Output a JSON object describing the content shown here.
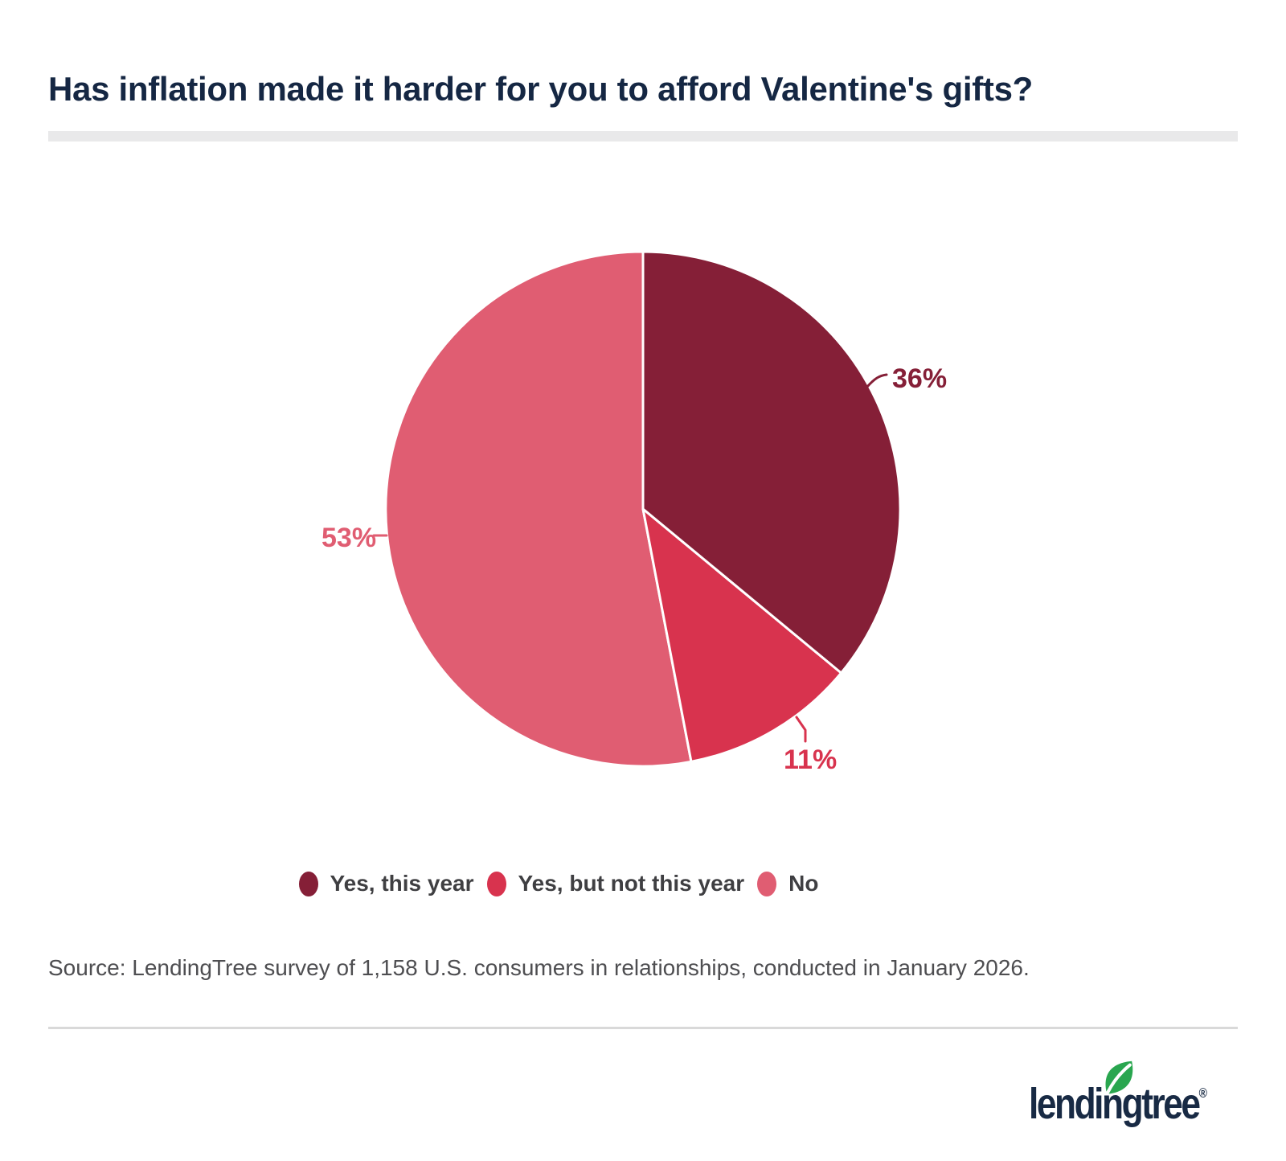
{
  "page": {
    "background": "#FFFFFF"
  },
  "header": {
    "title": "Has inflation made it harder for you to afford Valentine's gifts?",
    "title_color": "#152743"
  },
  "chart_data": {
    "type": "pie",
    "title": "Has inflation made it harder for you to afford Valentine's gifts?",
    "units": "percent",
    "direction": "clockwise",
    "start_angle_deg": 0,
    "legend_position": "bottom",
    "slices": [
      {
        "label": "Yes, this year",
        "value": 36,
        "display": "36%",
        "color": "#851F37"
      },
      {
        "label": "Yes, but not this year",
        "value": 11,
        "display": "11%",
        "color": "#D8334E"
      },
      {
        "label": "No",
        "value": 53,
        "display": "53%",
        "color": "#E05D72"
      }
    ]
  },
  "legend": {
    "items": [
      {
        "label": "Yes, this year",
        "color": "#851F37"
      },
      {
        "label": "Yes, but not this year",
        "color": "#D8334E"
      },
      {
        "label": "No",
        "color": "#E05D72"
      }
    ]
  },
  "source": {
    "text": "Source: LendingTree survey of 1,158 U.S. consumers in relationships, conducted in January 2026."
  },
  "logo": {
    "wordmark": "lendingtree",
    "registered_mark": "®",
    "leaf_color": "#29A64F",
    "wordmark_color": "#182A44"
  }
}
